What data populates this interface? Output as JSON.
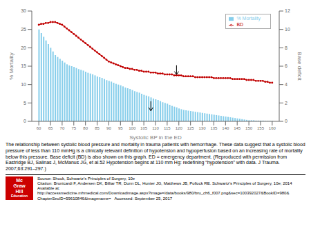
{
  "chart_data": {
    "type": "bar",
    "xlabel": "Systolic BP in the ED",
    "ylabel": "% Mortality",
    "y2label": "Base deficit",
    "xlim": [
      57,
      163
    ],
    "xticks": [
      60,
      65,
      70,
      75,
      80,
      85,
      90,
      95,
      100,
      105,
      110,
      115,
      120,
      125,
      130,
      135,
      140,
      145,
      150,
      155,
      160
    ],
    "ylim": [
      0,
      30
    ],
    "yticks": [
      0,
      5,
      10,
      15,
      20,
      25,
      30
    ],
    "y2lim": [
      0,
      12
    ],
    "y2ticks": [
      0,
      2,
      4,
      6,
      8,
      10,
      12
    ],
    "grid": false,
    "legend": "upper right",
    "x": [
      60,
      61,
      62,
      63,
      64,
      65,
      66,
      67,
      68,
      69,
      70,
      71,
      72,
      73,
      74,
      75,
      76,
      77,
      78,
      79,
      80,
      81,
      82,
      83,
      84,
      85,
      86,
      87,
      88,
      89,
      90,
      91,
      92,
      93,
      94,
      95,
      96,
      97,
      98,
      99,
      100,
      101,
      102,
      103,
      104,
      105,
      106,
      107,
      108,
      109,
      110,
      111,
      112,
      113,
      114,
      115,
      116,
      117,
      118,
      119,
      120,
      121,
      122,
      123,
      124,
      125,
      126,
      127,
      128,
      129,
      130,
      131,
      132,
      133,
      134,
      135,
      136,
      137,
      138,
      139,
      140,
      141,
      142,
      143,
      144,
      145,
      146,
      147,
      148,
      149,
      150,
      151,
      152,
      153,
      154,
      155,
      156,
      157,
      158,
      159,
      160
    ],
    "series": [
      {
        "name": "% Mortality",
        "type": "bar",
        "color": "#87CEEB",
        "values": [
          25,
          24,
          23,
          22,
          21,
          20,
          19,
          18,
          17.5,
          17,
          16.5,
          16,
          15.5,
          15.2,
          15,
          14.8,
          14.5,
          14.2,
          14,
          13.8,
          13.5,
          13.2,
          13,
          12.8,
          12.5,
          12.2,
          12,
          11.8,
          11.5,
          11.2,
          11,
          10.8,
          10.5,
          10.2,
          10,
          9.8,
          9.5,
          9.2,
          9,
          8.8,
          8.5,
          8.2,
          8,
          7.8,
          7.5,
          7.2,
          7,
          6.8,
          6.5,
          6.2,
          6,
          5.8,
          5.5,
          5.2,
          5,
          4.8,
          4.5,
          4.2,
          4,
          3.8,
          3.5,
          3.3,
          3.1,
          3.0,
          2.9,
          2.8,
          2.7,
          2.6,
          2.5,
          2.4,
          2.3,
          2.2,
          2.1,
          2.0,
          1.9,
          1.8,
          1.7,
          1.6,
          1.5,
          1.4,
          1.3,
          1.2,
          1.1,
          1.0,
          0.9,
          0.8,
          0.7,
          0.6,
          0.5,
          0.4,
          0.3,
          0.3,
          0.3,
          0.2,
          0.2,
          0.2,
          0.2,
          0.1,
          0.1,
          0.1,
          0.1
        ]
      },
      {
        "name": "BD",
        "type": "line",
        "color": "#C00000",
        "marker": "circle",
        "axis": "y2",
        "values": [
          10.5,
          10.6,
          10.6,
          10.7,
          10.7,
          10.8,
          10.8,
          10.8,
          10.7,
          10.6,
          10.5,
          10.3,
          10.1,
          9.9,
          9.7,
          9.5,
          9.3,
          9.1,
          8.9,
          8.7,
          8.5,
          8.3,
          8.1,
          7.9,
          7.7,
          7.5,
          7.3,
          7.1,
          6.9,
          6.7,
          6.5,
          6.4,
          6.3,
          6.2,
          6.1,
          6.0,
          5.9,
          5.8,
          5.8,
          5.7,
          5.7,
          5.6,
          5.6,
          5.5,
          5.5,
          5.4,
          5.4,
          5.4,
          5.3,
          5.3,
          5.3,
          5.2,
          5.2,
          5.2,
          5.1,
          5.1,
          5.1,
          5.1,
          5.0,
          5.0,
          5.0,
          5.0,
          4.9,
          4.9,
          4.9,
          4.9,
          4.9,
          4.8,
          4.8,
          4.8,
          4.8,
          4.8,
          4.8,
          4.8,
          4.8,
          4.7,
          4.7,
          4.7,
          4.7,
          4.7,
          4.7,
          4.7,
          4.7,
          4.6,
          4.6,
          4.6,
          4.6,
          4.6,
          4.6,
          4.5,
          4.5,
          4.5,
          4.5,
          4.4,
          4.4,
          4.4,
          4.4,
          4.3,
          4.3,
          4.2,
          4.2
        ]
      }
    ],
    "annotations": [
      {
        "text": "The relationship between systolic blood pressure and mortality in trauma patients with hemorrhage. These data suggest that a systolic blood pressure of less than 110 mmHg is a clinically relevant definition of hypotension and hypoperfusion based on an increasing rate of mortality below this pressure. Base deficit (BD) is also shown on this graph. ED = emergency department. (Reproduced with permission from Eastridge BJ, Salinas J, McManus JG, et al.52 Hypotension begins at 110 mm Hg: redefining “hypotension” with data. J Trauma. 2007;63:291–297.)"
      },
      {
        "text": "Mc",
        "color": "#CC0000"
      },
      {
        "text": "Graw",
        "color": "#CC0000"
      },
      {
        "text": "Hill",
        "color": "#CC0000"
      },
      {
        "text": "Education",
        "color": "#CC0000"
      },
      {
        "text": "Source: Shock, Schwartz’s Principles of Surgery, 10e"
      },
      {
        "text": "Citation: Brunicardi F, Andersen DK, Billiar TR, Dunn DL, Hunter JG, Matthews JB, Pollock RE. Schwartz’s Principles of Surgery, 10e; 2014"
      },
      {
        "text": "Available at:"
      },
      {
        "text": "http://accessmedicine.mhmedical.com/Downloadimage.aspx?image=/data/books/980/bru_ch6_f007.png&sec=100392027&BookID=980&"
      },
      {
        "text": "ChapterSecID=59610846&imagename=   Accessed: September 25, 2017"
      },
      {
        "x": 108,
        "y": 3.2
      },
      {
        "x": 119,
        "y": 5.2,
        "axis": "y2"
      }
    ]
  }
}
